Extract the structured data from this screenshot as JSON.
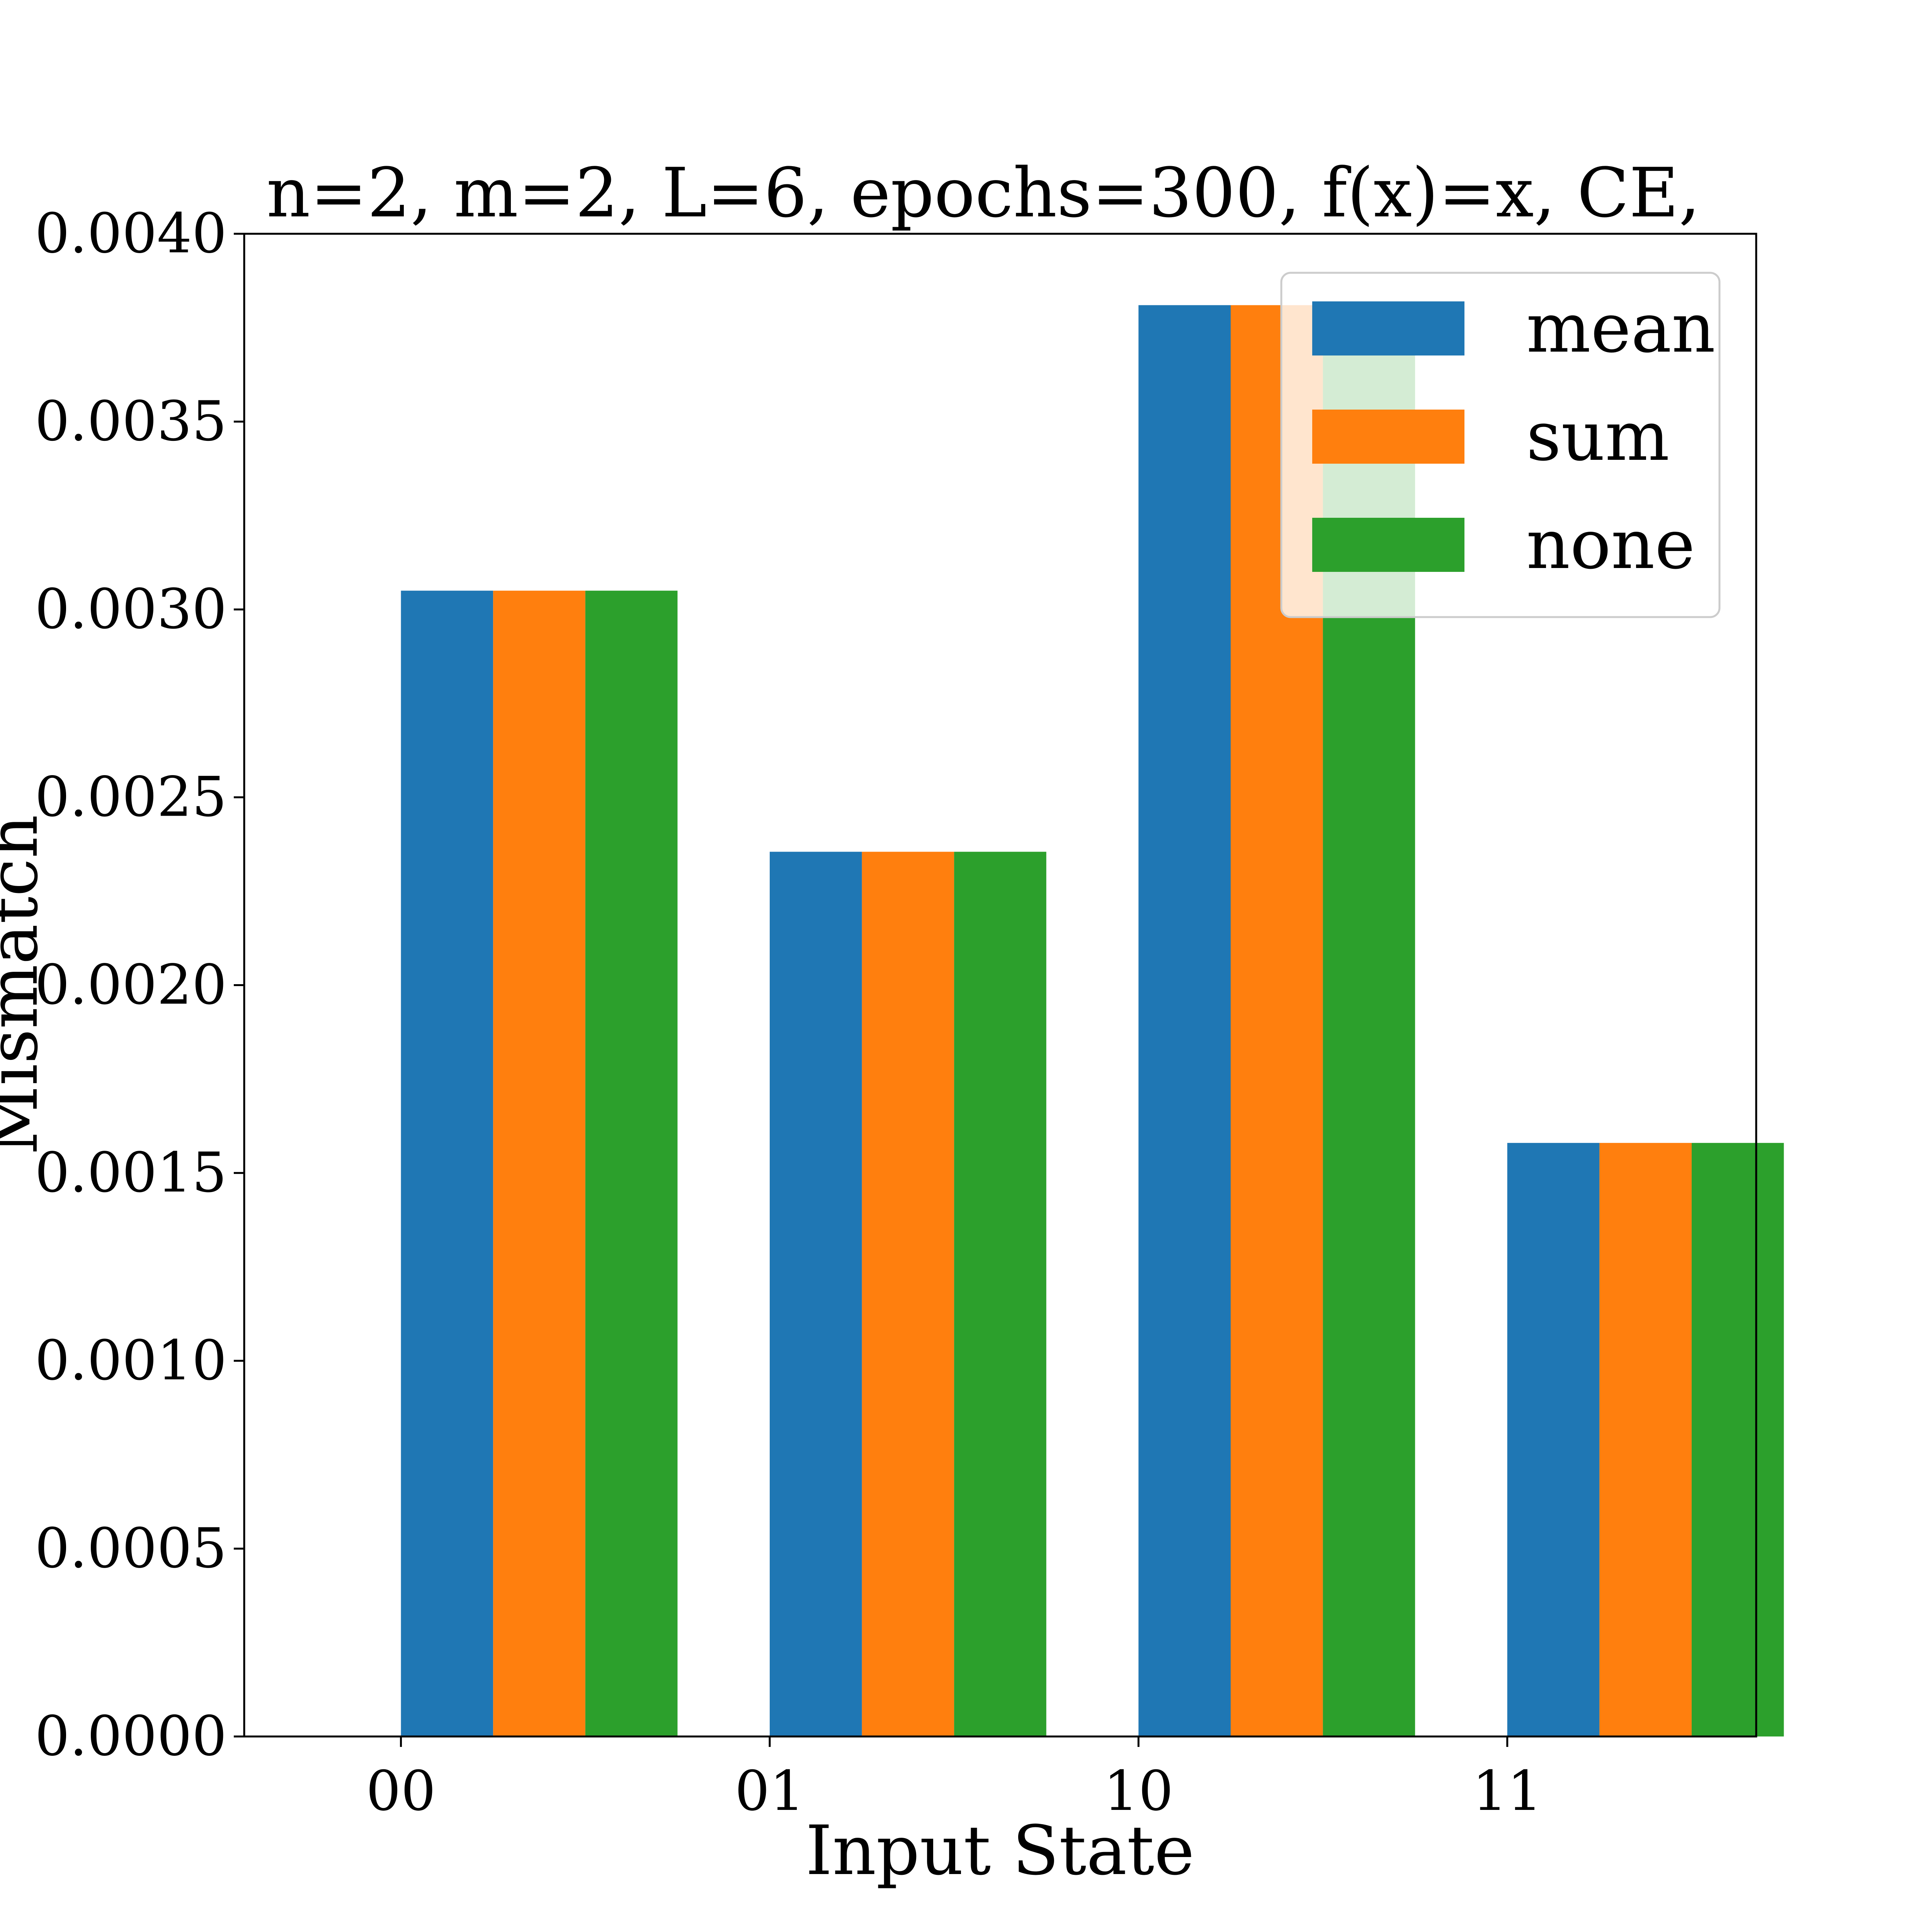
{
  "chart_data": {
    "type": "bar",
    "title": "n=2, m=2, L=6, epochs=300, f(x)=x, CE,",
    "xlabel": "Input State",
    "ylabel": "Mismatch",
    "categories": [
      "00",
      "01",
      "10",
      "11"
    ],
    "series": [
      {
        "name": "mean",
        "color": "#1f77b4",
        "values": [
          0.00305,
          0.002355,
          0.00381,
          0.00158
        ]
      },
      {
        "name": "sum",
        "color": "#ff7f0e",
        "values": [
          0.00305,
          0.002355,
          0.00381,
          0.00158
        ]
      },
      {
        "name": "none",
        "color": "#2ca02c",
        "values": [
          0.00305,
          0.002355,
          0.00381,
          0.00158
        ]
      }
    ],
    "ylim": [
      0,
      0.004
    ],
    "yticks": [
      0.0,
      0.0005,
      0.001,
      0.0015,
      0.002,
      0.0025,
      0.003,
      0.0035,
      0.004
    ],
    "ytick_labels": [
      "0.0000",
      "0.0005",
      "0.0010",
      "0.0015",
      "0.0020",
      "0.0025",
      "0.0030",
      "0.0035",
      "0.0040"
    ],
    "legend_position": "top-right",
    "grid": false
  }
}
